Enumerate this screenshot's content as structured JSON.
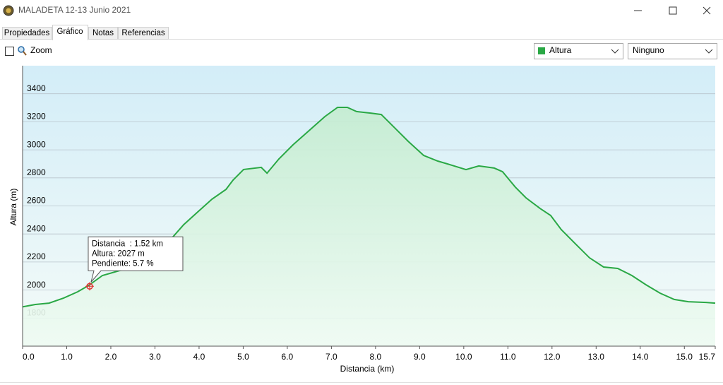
{
  "window": {
    "title": "MALADETA 12-13 Junio 2021"
  },
  "tabs": [
    "Propiedades",
    "Gráfico",
    "Notas",
    "Referencias"
  ],
  "toolbar": {
    "zoom": "Zoom",
    "series_select": "Altura",
    "secondary_select": "Ninguno"
  },
  "chart_data": {
    "type": "area",
    "x_label": "Distancia  (km)",
    "y_label": "Altura (m)",
    "color": "#2aa845",
    "x": [
      0,
      0.29,
      0.6,
      0.93,
      1.25,
      1.5,
      1.81,
      2.2,
      2.69,
      3.0,
      3.41,
      3.65,
      3.97,
      4.29,
      4.61,
      4.77,
      5.01,
      5.41,
      5.54,
      5.81,
      6.13,
      6.53,
      6.85,
      7.14,
      7.36,
      7.57,
      7.89,
      8.13,
      8.45,
      8.74,
      9.09,
      9.41,
      9.73,
      10.05,
      10.34,
      10.69,
      10.88,
      11.17,
      11.41,
      11.73,
      11.97,
      12.21,
      12.53,
      12.85,
      13.17,
      13.49,
      13.81,
      14.13,
      14.45,
      14.77,
      15.09,
      15.49,
      15.7
    ],
    "values": [
      1880,
      1897,
      1907,
      1943,
      1988,
      2033,
      2104,
      2139,
      2164,
      2225,
      2380,
      2466,
      2557,
      2648,
      2718,
      2784,
      2860,
      2875,
      2834,
      2935,
      3036,
      3147,
      3237,
      3303,
      3303,
      3273,
      3262,
      3252,
      3152,
      3061,
      2960,
      2920,
      2890,
      2859,
      2885,
      2870,
      2844,
      2734,
      2658,
      2582,
      2532,
      2431,
      2330,
      2230,
      2164,
      2154,
      2104,
      2038,
      1978,
      1933,
      1917,
      1912,
      1907
    ],
    "xlim": [
      0,
      15.7
    ],
    "xticks": [
      {
        "value": 0,
        "label": "0.0"
      },
      {
        "value": 1,
        "label": "1.0"
      },
      {
        "value": 2,
        "label": "2.0"
      },
      {
        "value": 3,
        "label": "3.0"
      },
      {
        "value": 4,
        "label": "4.0"
      },
      {
        "value": 5,
        "label": "5.0"
      },
      {
        "value": 6,
        "label": "6.0"
      },
      {
        "value": 7,
        "label": "7.0"
      },
      {
        "value": 8,
        "label": "8.0"
      },
      {
        "value": 9,
        "label": "9.0"
      },
      {
        "value": 10,
        "label": "10.0"
      },
      {
        "value": 11,
        "label": "11.0"
      },
      {
        "value": 12,
        "label": "12.0"
      },
      {
        "value": 13,
        "label": "13.0"
      },
      {
        "value": 14,
        "label": "14.0"
      },
      {
        "value": 15,
        "label": "15.0"
      },
      15.7
    ],
    "ylim": [
      1600,
      3600
    ],
    "yticks": [
      1800,
      2000,
      2200,
      2400,
      2600,
      2800,
      3000,
      3200,
      3400
    ],
    "grid": true,
    "marker": {
      "x": 1.52,
      "y": 2027
    },
    "tooltip": [
      "Distancia  : 1.52 km",
      "Altura: 2027 m",
      "Pendiente: 5.7 %"
    ]
  }
}
